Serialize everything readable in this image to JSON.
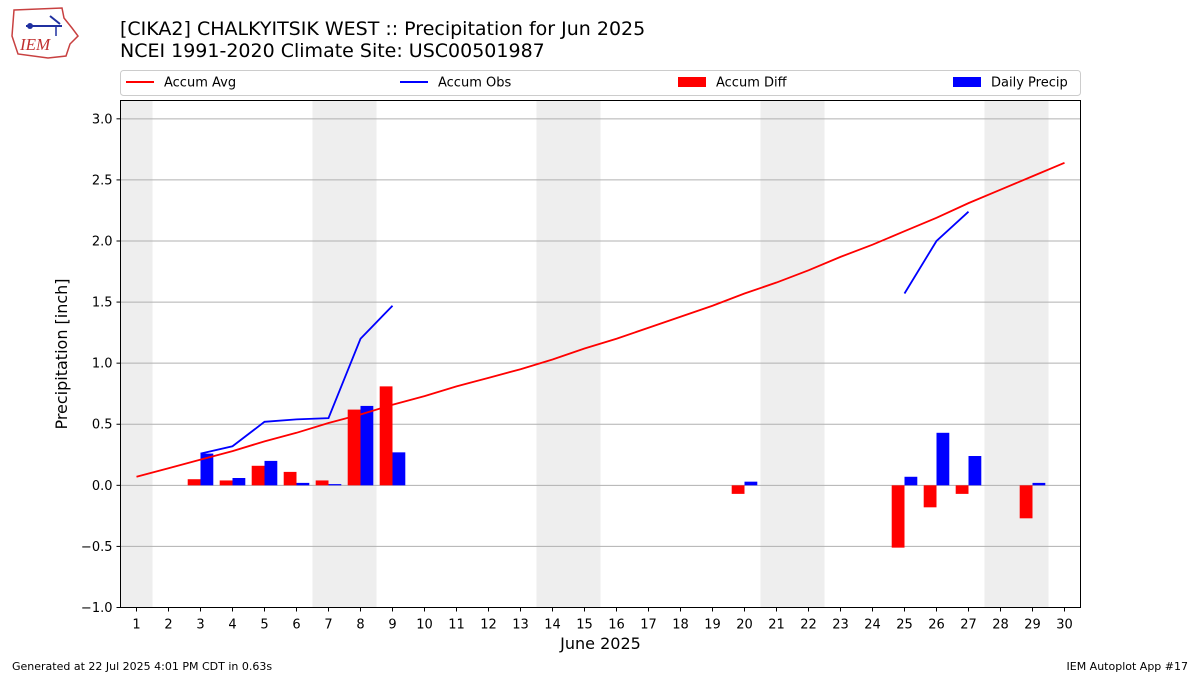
{
  "header": {
    "logo_text": "IEM",
    "title_line1": "[CIKA2] CHALKYITSIK WEST :: Precipitation for Jun 2025",
    "title_line2": "NCEI 1991-2020 Climate Site: USC00501987"
  },
  "footer": {
    "generated": "Generated at 22 Jul 2025 4:01 PM CDT in 0.63s",
    "app": "IEM Autoplot App #17"
  },
  "colors": {
    "avg": "#ff0000",
    "obs": "#0000ff",
    "diff": "#ff0000",
    "daily": "#0000ff",
    "weekend": "#eeeeee",
    "grid": "#b0b0b0"
  },
  "chart_data": {
    "type": "bar",
    "xlabel": "June 2025",
    "ylabel": "Precipitation [inch]",
    "ylim": [
      -1.0,
      3.15
    ],
    "yticks": [
      -1.0,
      -0.5,
      0.0,
      0.5,
      1.0,
      1.5,
      2.0,
      2.5,
      3.0
    ],
    "ytick_labels": [
      "−1.0",
      "−0.5",
      "0.0",
      "0.5",
      "1.0",
      "1.5",
      "2.0",
      "2.5",
      "3.0"
    ],
    "x": [
      1,
      2,
      3,
      4,
      5,
      6,
      7,
      8,
      9,
      10,
      11,
      12,
      13,
      14,
      15,
      16,
      17,
      18,
      19,
      20,
      21,
      22,
      23,
      24,
      25,
      26,
      27,
      28,
      29,
      30
    ],
    "grid": true,
    "legend_position": "top",
    "shaded_day_ranges": [
      [
        1,
        1
      ],
      [
        7,
        8
      ],
      [
        14,
        15
      ],
      [
        21,
        22
      ],
      [
        28,
        29
      ]
    ],
    "series": [
      {
        "name": "Accum Avg",
        "kind": "line",
        "values": [
          0.07,
          0.14,
          0.21,
          0.28,
          0.36,
          0.43,
          0.51,
          0.58,
          0.66,
          0.73,
          0.81,
          0.88,
          0.95,
          1.03,
          1.12,
          1.2,
          1.29,
          1.38,
          1.47,
          1.57,
          1.66,
          1.76,
          1.87,
          1.97,
          2.08,
          2.19,
          2.31,
          2.42,
          2.53,
          2.64
        ]
      },
      {
        "name": "Accum Obs",
        "kind": "line",
        "values": [
          null,
          null,
          0.26,
          0.32,
          0.52,
          0.54,
          0.55,
          1.2,
          1.47,
          null,
          null,
          null,
          null,
          null,
          null,
          null,
          null,
          null,
          null,
          null,
          null,
          null,
          null,
          null,
          1.57,
          2.0,
          2.24,
          null,
          null,
          null
        ]
      },
      {
        "name": "Accum Diff",
        "kind": "bar",
        "values": [
          null,
          null,
          0.05,
          0.04,
          0.16,
          0.11,
          0.04,
          0.62,
          0.81,
          null,
          null,
          null,
          null,
          null,
          null,
          null,
          null,
          null,
          null,
          -0.07,
          null,
          null,
          null,
          null,
          -0.51,
          -0.18,
          -0.07,
          null,
          -0.27,
          null
        ]
      },
      {
        "name": "Daily Precip",
        "kind": "bar",
        "values": [
          null,
          null,
          0.26,
          0.06,
          0.2,
          0.02,
          0.01,
          0.65,
          0.27,
          null,
          null,
          null,
          null,
          null,
          null,
          null,
          null,
          null,
          null,
          0.03,
          null,
          null,
          null,
          null,
          0.07,
          0.43,
          0.24,
          null,
          0.02,
          null
        ]
      }
    ]
  }
}
